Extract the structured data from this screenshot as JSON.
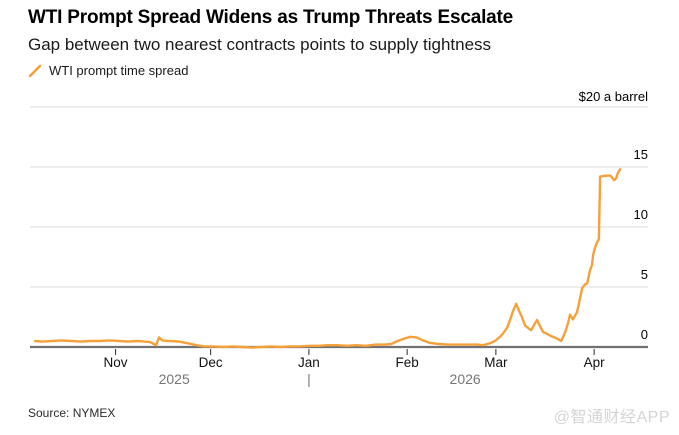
{
  "source": "Source: NYMEX",
  "watermark": "@智通财经APP",
  "chart_data": {
    "type": "line",
    "title": "WTI Prompt Spread Widens as Trump Threats Escalate",
    "subtitle": "Gap between two nearest contracts points to supply tightness",
    "colors": {
      "line": "#F5A13B",
      "grid": "#DBDBDB",
      "axis": "#6F7073",
      "tick": "#2B2B2B",
      "year": "#767676"
    },
    "y_axis": {
      "unit_label": "$20 a barrel",
      "range": [
        0,
        20
      ],
      "grid_values": [
        0,
        5,
        10,
        15,
        20
      ],
      "ticks": [
        {
          "v": 0,
          "label": "0"
        },
        {
          "v": 5,
          "label": "5"
        },
        {
          "v": 10,
          "label": "10"
        },
        {
          "v": 15,
          "label": "15"
        }
      ]
    },
    "x_axis": {
      "note": "d = days since 2025-10-05; chart spans Oct 2025 - mid Apr 2026",
      "domain": [
        0,
        195
      ],
      "ticks": [
        {
          "label": "Nov",
          "d": 27
        },
        {
          "label": "Dec",
          "d": 57
        },
        {
          "label": "Jan",
          "d": 88
        },
        {
          "label": "Feb",
          "d": 119
        },
        {
          "label": "Mar",
          "d": 147
        },
        {
          "label": "Apr",
          "d": 178
        }
      ],
      "years": [
        {
          "label": "2025",
          "d": 45.5
        },
        {
          "label": "2026",
          "d": 137.3
        }
      ],
      "year_separator_d": 88
    },
    "series": [
      {
        "name": "WTI prompt time spread",
        "color": "#F5A13B",
        "points": [
          [
            1.6,
            0.5
          ],
          [
            4,
            0.45
          ],
          [
            7,
            0.5
          ],
          [
            10,
            0.55
          ],
          [
            13,
            0.5
          ],
          [
            16,
            0.45
          ],
          [
            19,
            0.5
          ],
          [
            22,
            0.5
          ],
          [
            25,
            0.55
          ],
          [
            28,
            0.5
          ],
          [
            31,
            0.45
          ],
          [
            34,
            0.5
          ],
          [
            36,
            0.45
          ],
          [
            38,
            0.4
          ],
          [
            39.8,
            0.15
          ],
          [
            40.7,
            0.8
          ],
          [
            41.7,
            0.55
          ],
          [
            44,
            0.5
          ],
          [
            47,
            0.45
          ],
          [
            50,
            0.3
          ],
          [
            52.5,
            0.15
          ],
          [
            55,
            0.05
          ],
          [
            58,
            0.05
          ],
          [
            61,
            0
          ],
          [
            64,
            0.05
          ],
          [
            67,
            0
          ],
          [
            70,
            -0.05
          ],
          [
            73,
            0
          ],
          [
            76,
            0.05
          ],
          [
            79,
            0
          ],
          [
            82,
            0.05
          ],
          [
            85,
            0.05
          ],
          [
            88,
            0.1
          ],
          [
            91,
            0.1
          ],
          [
            94,
            0.15
          ],
          [
            97,
            0.15
          ],
          [
            100,
            0.1
          ],
          [
            103,
            0.15
          ],
          [
            106,
            0.1
          ],
          [
            109,
            0.2
          ],
          [
            112,
            0.2
          ],
          [
            114,
            0.25
          ],
          [
            116,
            0.5
          ],
          [
            118,
            0.7
          ],
          [
            120,
            0.85
          ],
          [
            122,
            0.8
          ],
          [
            124,
            0.55
          ],
          [
            126,
            0.35
          ],
          [
            129,
            0.25
          ],
          [
            132,
            0.2
          ],
          [
            135,
            0.2
          ],
          [
            138,
            0.2
          ],
          [
            141,
            0.2
          ],
          [
            143,
            0.15
          ],
          [
            145,
            0.3
          ],
          [
            146.7,
            0.5
          ],
          [
            148.3,
            0.85
          ],
          [
            149.2,
            1.1
          ],
          [
            150.5,
            1.6
          ],
          [
            151.5,
            2.25
          ],
          [
            152.4,
            3.0
          ],
          [
            153.4,
            3.6
          ],
          [
            154,
            3.2
          ],
          [
            155.2,
            2.5
          ],
          [
            156.2,
            1.8
          ],
          [
            157.1,
            1.6
          ],
          [
            158.1,
            1.4
          ],
          [
            159.4,
            2.0
          ],
          [
            160,
            2.25
          ],
          [
            160.9,
            1.75
          ],
          [
            161.9,
            1.25
          ],
          [
            163.1,
            1.1
          ],
          [
            164.1,
            0.95
          ],
          [
            165.4,
            0.8
          ],
          [
            166.3,
            0.7
          ],
          [
            167.6,
            0.5
          ],
          [
            168.8,
            1.2
          ],
          [
            169.8,
            2.0
          ],
          [
            170.4,
            2.7
          ],
          [
            171.3,
            2.3
          ],
          [
            172.6,
            2.9
          ],
          [
            173.6,
            4.1
          ],
          [
            174.2,
            4.9
          ],
          [
            175.1,
            5.2
          ],
          [
            175.8,
            5.3
          ],
          [
            176.7,
            6.4
          ],
          [
            177.3,
            6.8
          ],
          [
            177.7,
            7.7
          ],
          [
            178.3,
            8.3
          ],
          [
            178.9,
            8.7
          ],
          [
            179.5,
            9.0
          ],
          [
            179.9,
            14.2
          ],
          [
            181,
            14.25
          ],
          [
            182.5,
            14.3
          ],
          [
            183.3,
            14.25
          ],
          [
            184.3,
            13.9
          ],
          [
            184.9,
            14.05
          ],
          [
            185.5,
            14.5
          ],
          [
            186.2,
            14.8
          ]
        ]
      }
    ]
  }
}
